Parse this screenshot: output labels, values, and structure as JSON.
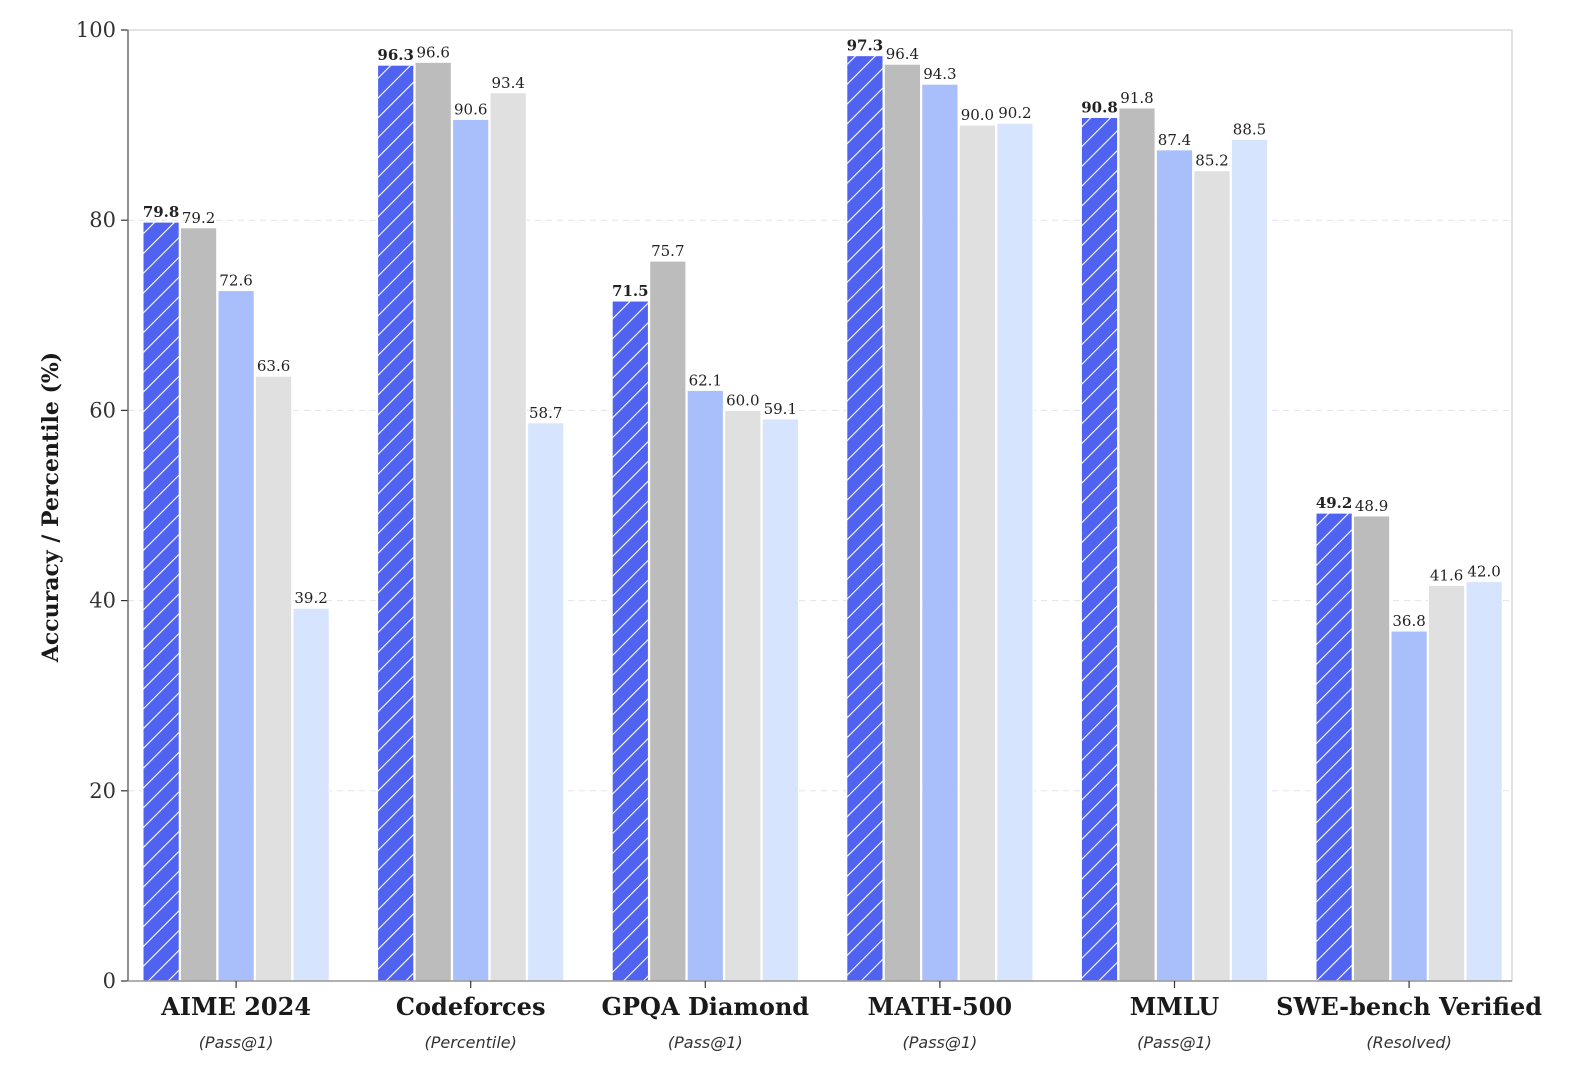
{
  "chart_data": {
    "type": "bar",
    "ylabel": "Accuracy / Percentile (%)",
    "ylim": [
      0,
      100
    ],
    "yticks": [
      0,
      20,
      40,
      60,
      80,
      100
    ],
    "grid": "horizontal dashed",
    "categories": [
      "AIME 2024",
      "Codeforces",
      "GPQA Diamond",
      "MATH-500",
      "MMLU",
      "SWE-bench Verified"
    ],
    "subtitles": [
      "(Pass@1)",
      "(Percentile)",
      "(Pass@1)",
      "(Pass@1)",
      "(Pass@1)",
      "(Resolved)"
    ],
    "series": [
      {
        "color": "#4f63f0",
        "hatch": true,
        "bold_labels": true,
        "values": [
          79.8,
          96.3,
          71.5,
          97.3,
          90.8,
          49.2
        ]
      },
      {
        "color": "#bcbcbc",
        "hatch": false,
        "bold_labels": false,
        "values": [
          79.2,
          96.6,
          75.7,
          96.4,
          91.8,
          48.9
        ]
      },
      {
        "color": "#a9bffc",
        "hatch": false,
        "bold_labels": false,
        "values": [
          72.6,
          90.6,
          62.1,
          94.3,
          87.4,
          36.8
        ]
      },
      {
        "color": "#e0e0e0",
        "hatch": false,
        "bold_labels": false,
        "values": [
          63.6,
          93.4,
          60.0,
          90.0,
          85.2,
          41.6
        ]
      },
      {
        "color": "#d7e4fe",
        "hatch": false,
        "bold_labels": false,
        "values": [
          39.2,
          58.7,
          59.1,
          90.2,
          88.5,
          42.0
        ]
      }
    ]
  }
}
